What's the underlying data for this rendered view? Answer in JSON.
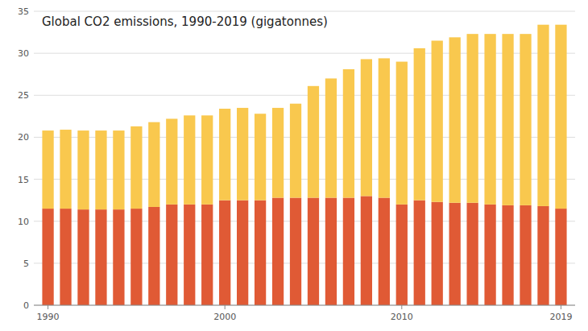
{
  "chart_data": {
    "type": "bar",
    "stacked": true,
    "grid": true,
    "title": "Global CO2 emissions, 1990-2019 (gigatonnes)",
    "x": [
      1990,
      1991,
      1992,
      1993,
      1994,
      1995,
      1996,
      1997,
      1998,
      1999,
      2000,
      2001,
      2002,
      2003,
      2004,
      2005,
      2006,
      2007,
      2008,
      2009,
      2010,
      2011,
      2012,
      2013,
      2014,
      2015,
      2016,
      2017,
      2018,
      2019
    ],
    "series": [
      {
        "color": "#E05A35",
        "values": [
          11.5,
          11.5,
          11.4,
          11.4,
          11.4,
          11.5,
          11.7,
          12.0,
          12.0,
          12.0,
          12.5,
          12.5,
          12.5,
          12.8,
          12.8,
          12.8,
          12.8,
          12.8,
          13.0,
          12.8,
          12.0,
          12.5,
          12.3,
          12.2,
          12.2,
          12.0,
          11.9,
          11.9,
          11.8,
          11.5
        ]
      },
      {
        "color": "#F9C84E",
        "values": [
          9.3,
          9.4,
          9.4,
          9.4,
          9.4,
          9.8,
          10.1,
          10.2,
          10.6,
          10.6,
          10.9,
          11.0,
          10.3,
          10.7,
          11.2,
          13.3,
          14.2,
          15.3,
          16.3,
          16.6,
          17.0,
          18.1,
          19.2,
          19.7,
          20.1,
          20.3,
          20.4,
          20.4,
          21.6,
          21.9
        ]
      }
    ],
    "xlim": [
      1989.2,
      2019.8
    ],
    "xticks": [
      1990,
      2000,
      2010,
      2019
    ],
    "ylim": [
      0,
      35
    ],
    "yticks": [
      0,
      5,
      10,
      15,
      20,
      25,
      30,
      35
    ]
  }
}
